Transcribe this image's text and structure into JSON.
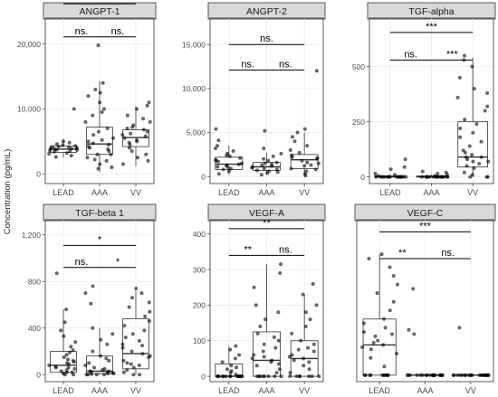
{
  "y_axis_label": "Concentration (pg/mL)",
  "colors": {
    "strip_fill": "#d9d9d9",
    "strip_border": "#333333",
    "panel_border": "#333333",
    "grid": "#ebebeb",
    "box": "#333333",
    "points": "#000000",
    "text": "#1a1a1a",
    "tick_text": "#4d4d4d"
  },
  "chart_data": [
    {
      "type": "box",
      "title": "ANGPT-1",
      "categories": [
        "LEAD",
        "AAA",
        "VV"
      ],
      "ylim": [
        -1500,
        24000
      ],
      "yticks": [
        0,
        10000,
        20000
      ],
      "ytick_labels": [
        "0",
        "10,000",
        "20,000"
      ],
      "boxes": [
        {
          "min": 2500,
          "q1": 3300,
          "median": 3800,
          "q3": 4300,
          "max": 5400
        },
        {
          "min": 300,
          "q1": 3000,
          "median": 4600,
          "q3": 7200,
          "max": 14300
        },
        {
          "min": 1200,
          "q1": 4200,
          "median": 5600,
          "q3": 6800,
          "max": 10400
        }
      ],
      "points": [
        [
          3100,
          3400,
          3600,
          3700,
          3800,
          3900,
          4000,
          4100,
          4200,
          4300,
          3500,
          3900,
          4400,
          4600,
          5000,
          3200,
          3700,
          4100,
          2800,
          10000,
          2600,
          4800
        ],
        [
          1000,
          2000,
          2500,
          3000,
          3500,
          4000,
          4500,
          5000,
          5500,
          6000,
          7000,
          8000,
          9000,
          10000,
          11000,
          12000,
          13000,
          14000,
          19800,
          6500,
          4200,
          3800,
          3000,
          2200,
          1500,
          5200,
          4700,
          9500,
          12500,
          800
        ],
        [
          1500,
          2500,
          3500,
          4500,
          5000,
          5500,
          6000,
          6500,
          7000,
          7500,
          8000,
          9000,
          10000,
          11000,
          10500,
          4800,
          5200,
          5800,
          6200,
          3000,
          4000,
          6800,
          7200,
          8500,
          2000
        ]
      ],
      "comparisons": [
        {
          "from": 0,
          "to": 2,
          "label": "**",
          "y": 26200
        },
        {
          "from": 0,
          "to": 1,
          "label": "ns.",
          "y": 21100
        },
        {
          "from": 1,
          "to": 2,
          "label": "ns.",
          "y": 21100
        }
      ]
    },
    {
      "type": "box",
      "title": "ANGPT-2",
      "categories": [
        "LEAD",
        "AAA",
        "VV"
      ],
      "ylim": [
        -800,
        18000
      ],
      "yticks": [
        0,
        5000,
        10000,
        15000
      ],
      "ytick_labels": [
        "0",
        "5,000",
        "10,000",
        "15,000"
      ],
      "boxes": [
        {
          "min": 200,
          "q1": 800,
          "median": 1400,
          "q3": 2200,
          "max": 3500
        },
        {
          "min": 200,
          "q1": 700,
          "median": 1100,
          "q3": 1600,
          "max": 2700
        },
        {
          "min": 100,
          "q1": 900,
          "median": 1900,
          "q3": 2500,
          "max": 5000
        }
      ],
      "points": [
        [
          300,
          600,
          900,
          1100,
          1300,
          1500,
          1700,
          1900,
          2100,
          2300,
          2600,
          2900,
          3200,
          3500,
          4100,
          5400,
          1000,
          1400,
          1800,
          800,
          1200,
          2400
        ],
        [
          200,
          400,
          600,
          800,
          1000,
          1200,
          1400,
          1600,
          1800,
          2000,
          2300,
          2600,
          3200,
          5200,
          900,
          1100,
          1300,
          700,
          1500,
          500
        ],
        [
          100,
          300,
          600,
          900,
          1200,
          1500,
          1800,
          2100,
          2400,
          2700,
          3000,
          3500,
          4000,
          4500,
          5000,
          5400,
          12000,
          1600,
          2000,
          2200,
          800,
          1300
        ]
      ],
      "comparisons": [
        {
          "from": 0,
          "to": 2,
          "label": "ns.",
          "y": 15000
        },
        {
          "from": 0,
          "to": 1,
          "label": "ns.",
          "y": 12100
        },
        {
          "from": 1,
          "to": 2,
          "label": "ns.",
          "y": 12100
        }
      ]
    },
    {
      "type": "box",
      "title": "TGF-alpha",
      "categories": [
        "LEAD",
        "AAA",
        "VV"
      ],
      "ylim": [
        -30,
        720
      ],
      "yticks": [
        0,
        250,
        500
      ],
      "ytick_labels": [
        "0",
        "250",
        "500"
      ],
      "boxes": [
        {
          "min": 0,
          "q1": 0,
          "median": 0,
          "q3": 5,
          "max": 12
        },
        {
          "min": 0,
          "q1": 0,
          "median": 0,
          "q3": 5,
          "max": 12
        },
        {
          "min": 0,
          "q1": 45,
          "median": 90,
          "q3": 250,
          "max": 540
        }
      ],
      "points": [
        [
          0,
          0,
          0,
          0,
          0,
          0,
          0,
          0,
          0,
          0,
          0,
          0,
          5,
          10,
          15,
          35,
          45,
          80,
          0,
          0
        ],
        [
          0,
          0,
          0,
          0,
          0,
          0,
          0,
          0,
          0,
          0,
          0,
          0,
          5,
          10,
          15,
          20,
          25,
          0,
          0,
          0
        ],
        [
          0,
          0,
          0,
          10,
          20,
          40,
          50,
          60,
          70,
          80,
          90,
          100,
          110,
          120,
          140,
          160,
          180,
          200,
          220,
          240,
          260,
          300,
          320,
          360,
          380,
          400,
          450,
          500,
          530,
          550,
          90,
          70
        ]
      ],
      "comparisons": [
        {
          "from": 0,
          "to": 2,
          "label": "***",
          "y": 655
        },
        {
          "from": 0,
          "to": 1,
          "label": "ns.",
          "y": 530
        },
        {
          "from": 1,
          "to": 2,
          "label": "***",
          "y": 530
        }
      ]
    },
    {
      "type": "box",
      "title": "TGF-beta 1",
      "categories": [
        "LEAD",
        "AAA",
        "VV"
      ],
      "ylim": [
        -60,
        1330
      ],
      "yticks": [
        0,
        400,
        800,
        1200
      ],
      "ytick_labels": [
        "0",
        "400",
        "800",
        "1,200"
      ],
      "boxes": [
        {
          "min": 0,
          "q1": 20,
          "median": 80,
          "q3": 200,
          "max": 560
        },
        {
          "min": 0,
          "q1": 10,
          "median": 30,
          "q3": 160,
          "max": 400
        },
        {
          "min": 0,
          "q1": 50,
          "median": 180,
          "q3": 480,
          "max": 720
        }
      ],
      "points": [
        [
          0,
          0,
          10,
          20,
          30,
          40,
          50,
          60,
          70,
          80,
          90,
          100,
          110,
          130,
          150,
          170,
          190,
          210,
          240,
          280,
          330,
          380,
          450,
          560,
          870,
          60,
          120,
          20
        ],
        [
          0,
          0,
          0,
          10,
          15,
          20,
          25,
          30,
          40,
          50,
          60,
          80,
          100,
          120,
          140,
          160,
          200,
          260,
          300,
          350,
          400,
          610,
          700,
          760,
          30,
          10,
          0,
          5
        ],
        [
          0,
          0,
          20,
          40,
          60,
          80,
          100,
          120,
          150,
          180,
          200,
          230,
          260,
          290,
          320,
          350,
          380,
          420,
          460,
          500,
          540,
          580,
          620,
          660,
          700,
          740,
          160,
          90,
          250
        ]
      ],
      "comparisons": [
        {
          "from": 0,
          "to": 2,
          "label": "*",
          "y": 1110
        },
        {
          "from": 0,
          "to": 1,
          "label": "ns.",
          "y": 920
        },
        {
          "from": 1,
          "to": 2,
          "label": "*",
          "y": 920
        }
      ]
    },
    {
      "type": "box",
      "title": "VEGF-A",
      "categories": [
        "LEAD",
        "AAA",
        "VV"
      ],
      "ylim": [
        -15,
        440
      ],
      "yticks": [
        0,
        100,
        200,
        300,
        400
      ],
      "ytick_labels": [
        "0",
        "100",
        "200",
        "300",
        "400"
      ],
      "boxes": [
        {
          "min": 0,
          "q1": 0,
          "median": 0,
          "q3": 35,
          "max": 85
        },
        {
          "min": 0,
          "q1": 0,
          "median": 45,
          "q3": 125,
          "max": 315
        },
        {
          "min": 0,
          "q1": 0,
          "median": 50,
          "q3": 100,
          "max": 230
        }
      ],
      "points": [
        [
          0,
          0,
          0,
          0,
          0,
          0,
          0,
          0,
          0,
          0,
          0,
          0,
          0,
          0,
          5,
          10,
          20,
          30,
          40,
          50,
          60,
          75,
          85,
          15,
          25
        ],
        [
          0,
          0,
          0,
          0,
          0,
          0,
          0,
          0,
          10,
          20,
          30,
          40,
          45,
          50,
          60,
          70,
          80,
          90,
          100,
          110,
          120,
          140,
          160,
          180,
          200,
          250,
          290,
          315,
          35,
          55
        ],
        [
          0,
          0,
          0,
          0,
          0,
          0,
          0,
          10,
          20,
          30,
          40,
          50,
          60,
          70,
          80,
          90,
          100,
          120,
          140,
          160,
          180,
          200,
          230,
          260,
          45,
          55,
          75
        ]
      ],
      "comparisons": [
        {
          "from": 0,
          "to": 2,
          "label": "**",
          "y": 415
        },
        {
          "from": 0,
          "to": 1,
          "label": "**",
          "y": 340
        },
        {
          "from": 1,
          "to": 2,
          "label": "ns.",
          "y": 340
        }
      ]
    },
    {
      "type": "box",
      "title": "VEGF-C",
      "categories": [
        "LEAD",
        "AAA",
        "VV"
      ],
      "ylim": [
        -15,
        360
      ],
      "yticks": [],
      "ytick_labels": [],
      "boxes": [
        {
          "min": 0,
          "q1": 0,
          "median": 70,
          "q3": 130,
          "max": 280
        },
        {
          "min": 0,
          "q1": 0,
          "median": 0,
          "q3": 0,
          "max": 0
        },
        {
          "min": 0,
          "q1": 0,
          "median": 0,
          "q3": 0,
          "max": 0
        }
      ],
      "points": [
        [
          0,
          0,
          0,
          0,
          0,
          0,
          0,
          0,
          0,
          0,
          20,
          40,
          50,
          60,
          70,
          80,
          90,
          100,
          110,
          120,
          130,
          150,
          170,
          190,
          210,
          230,
          250,
          270,
          280,
          65,
          75,
          95
        ],
        [
          0,
          0,
          0,
          0,
          0,
          0,
          0,
          0,
          0,
          0,
          0,
          0,
          0,
          0,
          0,
          0,
          0,
          0,
          0,
          0,
          95,
          105,
          200
        ],
        [
          0,
          0,
          0,
          0,
          0,
          0,
          0,
          0,
          0,
          0,
          0,
          0,
          0,
          0,
          0,
          0,
          0,
          0,
          0,
          0,
          0,
          110
        ]
      ],
      "comparisons": [
        {
          "from": 0,
          "to": 2,
          "label": "***",
          "y": 332
        },
        {
          "from": 0,
          "to": 1,
          "label": "**",
          "y": 270
        },
        {
          "from": 1,
          "to": 2,
          "label": "ns.",
          "y": 270
        }
      ]
    }
  ]
}
